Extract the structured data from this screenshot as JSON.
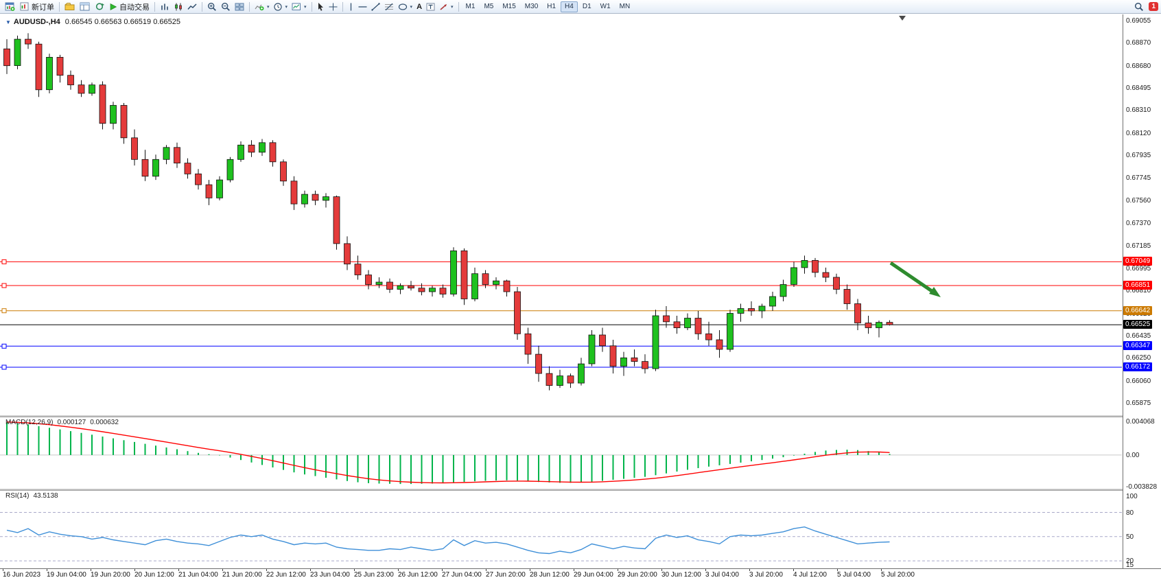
{
  "toolbar": {
    "new_order_label": "新订单",
    "autotrade_label": "自动交易",
    "timeframes": [
      "M1",
      "M5",
      "M15",
      "M30",
      "H1",
      "H4",
      "D1",
      "W1",
      "MN"
    ],
    "active_timeframe": "H4",
    "alert_count": "1"
  },
  "chart": {
    "title": "AUDUSD-,H4",
    "ohlc_text": "0.66545 0.66563 0.66519 0.66525"
  },
  "chart_data": {
    "type": "candlestick",
    "symbol": "AUDUSD",
    "period": "H4",
    "ohlc_current": {
      "open": 0.66545,
      "high": 0.66563,
      "low": 0.66519,
      "close": 0.66525
    },
    "price_axis": {
      "min": 0.65875,
      "max": 0.69055,
      "ticks": [
        "0.69055",
        "0.68870",
        "0.68680",
        "0.68495",
        "0.68310",
        "0.68120",
        "0.67935",
        "0.67745",
        "0.67560",
        "0.67370",
        "0.67185",
        "0.66995",
        "0.66810",
        "0.66620",
        "0.66435",
        "0.66250",
        "0.66060",
        "0.65875"
      ]
    },
    "time_labels": [
      "16 Jun 2023",
      "19 Jun 04:00",
      "19 Jun 20:00",
      "20 Jun 12:00",
      "21 Jun 04:00",
      "21 Jun 20:00",
      "22 Jun 12:00",
      "23 Jun 04:00",
      "25 Jun 23:00",
      "26 Jun 12:00",
      "27 Jun 04:00",
      "27 Jun 20:00",
      "28 Jun 12:00",
      "29 Jun 04:00",
      "29 Jun 20:00",
      "30 Jun 12:00",
      "3 Jul 04:00",
      "3 Jul 20:00",
      "4 Jul 12:00",
      "5 Jul 04:00",
      "5 Jul 20:00"
    ],
    "colors": {
      "up": "#1fc11f",
      "down": "#e43b3b",
      "wick": "#111111",
      "macd_hist": "#00b44a",
      "macd_signal": "#ff0000",
      "rsi_line": "#3e8fd8",
      "level_dash": "#a9a9c9"
    },
    "candles": [
      [
        0.6882,
        0.689,
        0.6861,
        0.6868
      ],
      [
        0.6868,
        0.6893,
        0.6865,
        0.689
      ],
      [
        0.689,
        0.6895,
        0.6882,
        0.6886
      ],
      [
        0.6886,
        0.6888,
        0.6842,
        0.6848
      ],
      [
        0.6848,
        0.6878,
        0.6845,
        0.6875
      ],
      [
        0.6875,
        0.6877,
        0.6854,
        0.686
      ],
      [
        0.686,
        0.6864,
        0.6848,
        0.6852
      ],
      [
        0.6852,
        0.6856,
        0.6842,
        0.6845
      ],
      [
        0.6845,
        0.6854,
        0.6843,
        0.6852
      ],
      [
        0.6852,
        0.6855,
        0.6815,
        0.682
      ],
      [
        0.682,
        0.6838,
        0.6815,
        0.6835
      ],
      [
        0.6835,
        0.6837,
        0.6803,
        0.6808
      ],
      [
        0.6808,
        0.6815,
        0.6785,
        0.679
      ],
      [
        0.679,
        0.6798,
        0.6772,
        0.6776
      ],
      [
        0.6776,
        0.6794,
        0.6773,
        0.679
      ],
      [
        0.679,
        0.6802,
        0.6786,
        0.68
      ],
      [
        0.68,
        0.6804,
        0.6783,
        0.6787
      ],
      [
        0.6787,
        0.6791,
        0.6774,
        0.6778
      ],
      [
        0.6778,
        0.6782,
        0.6765,
        0.6769
      ],
      [
        0.6769,
        0.6773,
        0.6752,
        0.6758
      ],
      [
        0.6758,
        0.6776,
        0.6756,
        0.6773
      ],
      [
        0.6773,
        0.6792,
        0.6771,
        0.679
      ],
      [
        0.679,
        0.6805,
        0.6788,
        0.6802
      ],
      [
        0.6802,
        0.6806,
        0.6792,
        0.6796
      ],
      [
        0.6796,
        0.6807,
        0.6793,
        0.6804
      ],
      [
        0.6804,
        0.6806,
        0.6784,
        0.6788
      ],
      [
        0.6788,
        0.679,
        0.6768,
        0.6772
      ],
      [
        0.6772,
        0.6776,
        0.6748,
        0.6753
      ],
      [
        0.6753,
        0.6764,
        0.675,
        0.6761
      ],
      [
        0.6761,
        0.6764,
        0.6752,
        0.6756
      ],
      [
        0.6756,
        0.6762,
        0.675,
        0.6759
      ],
      [
        0.6759,
        0.676,
        0.6715,
        0.672
      ],
      [
        0.672,
        0.6726,
        0.6698,
        0.6703
      ],
      [
        0.6703,
        0.671,
        0.669,
        0.6694
      ],
      [
        0.6694,
        0.6698,
        0.6682,
        0.6686
      ],
      [
        0.6686,
        0.6692,
        0.6683,
        0.6688
      ],
      [
        0.6688,
        0.6691,
        0.6679,
        0.6682
      ],
      [
        0.6682,
        0.6687,
        0.6678,
        0.6685
      ],
      [
        0.6685,
        0.6689,
        0.6681,
        0.6683
      ],
      [
        0.6683,
        0.6687,
        0.6677,
        0.668
      ],
      [
        0.668,
        0.6685,
        0.6676,
        0.6683
      ],
      [
        0.6683,
        0.6686,
        0.6675,
        0.6678
      ],
      [
        0.6678,
        0.6717,
        0.6676,
        0.6714
      ],
      [
        0.6714,
        0.6716,
        0.6669,
        0.6674
      ],
      [
        0.6674,
        0.67,
        0.6672,
        0.6695
      ],
      [
        0.6695,
        0.6698,
        0.6683,
        0.6686
      ],
      [
        0.6686,
        0.6692,
        0.6682,
        0.6689
      ],
      [
        0.6689,
        0.669,
        0.6676,
        0.668
      ],
      [
        0.668,
        0.6684,
        0.664,
        0.6645
      ],
      [
        0.6645,
        0.665,
        0.662,
        0.6628
      ],
      [
        0.6628,
        0.6635,
        0.6605,
        0.6612
      ],
      [
        0.6612,
        0.6618,
        0.6598,
        0.6602
      ],
      [
        0.6602,
        0.6615,
        0.66,
        0.661
      ],
      [
        0.661,
        0.6612,
        0.66,
        0.6604
      ],
      [
        0.6604,
        0.6625,
        0.6602,
        0.662
      ],
      [
        0.662,
        0.6648,
        0.6618,
        0.6644
      ],
      [
        0.6644,
        0.665,
        0.663,
        0.6635
      ],
      [
        0.6635,
        0.664,
        0.6612,
        0.6618
      ],
      [
        0.6618,
        0.663,
        0.661,
        0.6625
      ],
      [
        0.6625,
        0.6632,
        0.6618,
        0.6622
      ],
      [
        0.6622,
        0.6628,
        0.6612,
        0.6616
      ],
      [
        0.6616,
        0.6665,
        0.6614,
        0.666
      ],
      [
        0.666,
        0.6668,
        0.665,
        0.6655
      ],
      [
        0.6655,
        0.666,
        0.6645,
        0.665
      ],
      [
        0.665,
        0.6662,
        0.6648,
        0.6658
      ],
      [
        0.6658,
        0.6664,
        0.664,
        0.6645
      ],
      [
        0.6645,
        0.6655,
        0.6635,
        0.664
      ],
      [
        0.664,
        0.6648,
        0.6625,
        0.6632
      ],
      [
        0.6632,
        0.6665,
        0.663,
        0.6662
      ],
      [
        0.6662,
        0.667,
        0.6655,
        0.6666
      ],
      [
        0.6666,
        0.6672,
        0.666,
        0.6664
      ],
      [
        0.6664,
        0.667,
        0.6658,
        0.6668
      ],
      [
        0.6668,
        0.668,
        0.6664,
        0.6676
      ],
      [
        0.6676,
        0.669,
        0.6672,
        0.6686
      ],
      [
        0.6686,
        0.6705,
        0.6684,
        0.67
      ],
      [
        0.67,
        0.671,
        0.6695,
        0.6706
      ],
      [
        0.6706,
        0.6708,
        0.6692,
        0.6696
      ],
      [
        0.6696,
        0.67,
        0.6688,
        0.6692
      ],
      [
        0.6692,
        0.6695,
        0.6678,
        0.6682
      ],
      [
        0.6682,
        0.6686,
        0.6665,
        0.667
      ],
      [
        0.667,
        0.6674,
        0.6648,
        0.6654
      ],
      [
        0.6654,
        0.666,
        0.6645,
        0.665
      ],
      [
        0.665,
        0.6656,
        0.6642,
        0.66545
      ],
      [
        0.66545,
        0.66563,
        0.66519,
        0.66525
      ]
    ],
    "hlines": [
      {
        "price": 0.67049,
        "label": "0.67049",
        "color": "#ff0000"
      },
      {
        "price": 0.66851,
        "label": "0.66851",
        "color": "#ff0000"
      },
      {
        "price": 0.66642,
        "label": "0.66642",
        "color": "#cc7a00"
      },
      {
        "price": 0.66525,
        "label": "0.66525",
        "color": "#000000",
        "is_bid": true
      },
      {
        "price": 0.66347,
        "label": "0.66347",
        "color": "#0000ff"
      },
      {
        "price": 0.66172,
        "label": "0.66172",
        "color": "#0000ff"
      }
    ],
    "trend_arrow": {
      "color": "#2e8b2e",
      "direction": "down-right"
    },
    "macd": {
      "name": "MACD(12,26,9)",
      "value_main": "0.000127",
      "value_signal": "0.000632",
      "axis_ticks": [
        "0.004068",
        "0.00",
        "-0.003828"
      ],
      "max": 0.004068,
      "min": -0.003828,
      "main": [
        0.004,
        0.00385,
        0.0037,
        0.0035,
        0.0033,
        0.0031,
        0.0029,
        0.00268,
        0.00246,
        0.00224,
        0.00202,
        0.0018,
        0.00158,
        0.00136,
        0.00114,
        0.00092,
        0.0007,
        0.00048,
        0.00026,
        0.0001,
        -5e-05,
        -0.0003,
        -0.0006,
        -0.0009,
        -0.0012,
        -0.0015,
        -0.0018,
        -0.0021,
        -0.00235,
        -0.00255,
        -0.00275,
        -0.00295,
        -0.00315,
        -0.0033,
        -0.0034,
        -0.00345,
        -0.00348,
        -0.0035,
        -0.0035,
        -0.00348,
        -0.00345,
        -0.0034,
        -0.0033,
        -0.00325,
        -0.00318,
        -0.00312,
        -0.00308,
        -0.00306,
        -0.0031,
        -0.00318,
        -0.00326,
        -0.00332,
        -0.00336,
        -0.00336,
        -0.00332,
        -0.00324,
        -0.00312,
        -0.003,
        -0.00288,
        -0.00276,
        -0.00264,
        -0.00244,
        -0.00222,
        -0.002,
        -0.00178,
        -0.00158,
        -0.0014,
        -0.00124,
        -0.00108,
        -0.00092,
        -0.00076,
        -0.0006,
        -0.00044,
        -0.00026,
        -6e-05,
        0.00016,
        0.00038,
        0.00054,
        0.00062,
        0.00064,
        0.0006,
        0.00048,
        0.00032,
        0.000127
      ]
    },
    "rsi": {
      "name": "RSI(14)",
      "value": "43.5138",
      "axis_ticks": [
        100,
        80,
        50,
        20,
        15
      ],
      "levels": [
        80,
        50,
        20
      ],
      "max": 100,
      "min": 15,
      "values": [
        58,
        55,
        60,
        52,
        56,
        53,
        51,
        50,
        47,
        49,
        46,
        44,
        42,
        40,
        45,
        47,
        44,
        42,
        41,
        39,
        44,
        49,
        52,
        50,
        52,
        47,
        44,
        40,
        42,
        41,
        42,
        37,
        35,
        34,
        33,
        33,
        35,
        34,
        37,
        35,
        33,
        35,
        46,
        39,
        45,
        42,
        43,
        41,
        37,
        33,
        30,
        29,
        32,
        30,
        34,
        41,
        38,
        35,
        38,
        36,
        35,
        48,
        52,
        49,
        51,
        46,
        44,
        41,
        50,
        52,
        51,
        52,
        54,
        56,
        60,
        62,
        57,
        53,
        49,
        45,
        41,
        42,
        43,
        43.5
      ]
    }
  }
}
